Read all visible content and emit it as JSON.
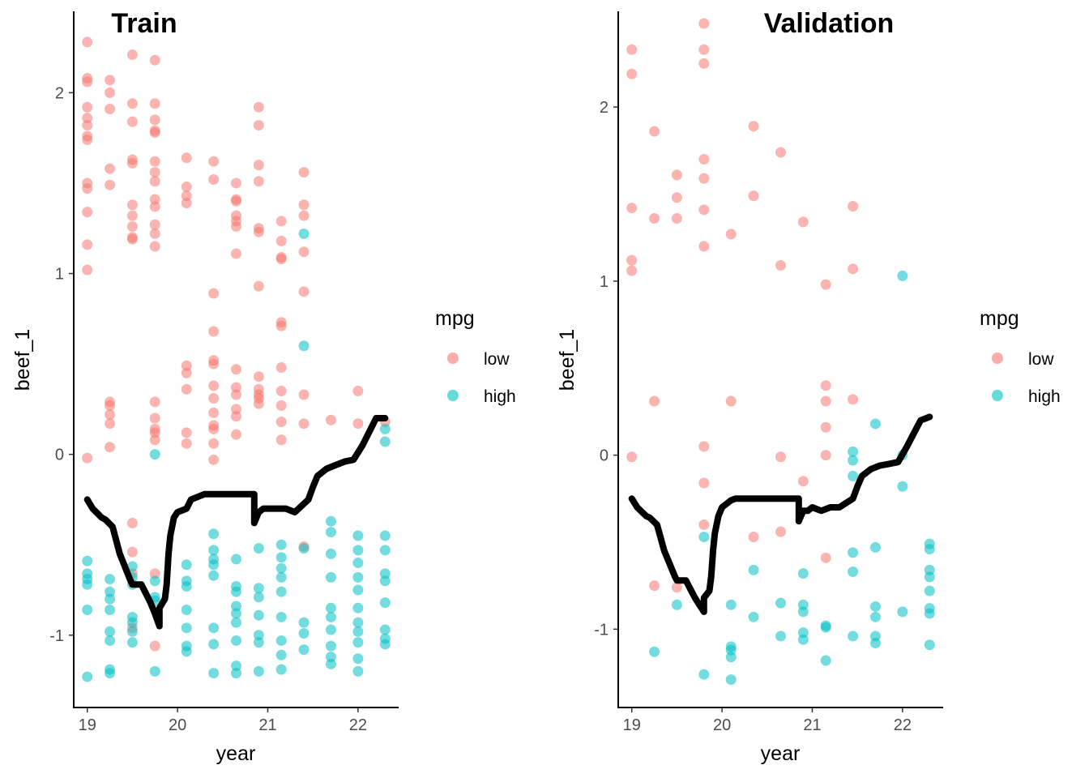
{
  "colors": {
    "low": "#F8766D",
    "high": "#00BFC4",
    "line": "#000000",
    "axis": "#000000"
  },
  "chart_data": [
    {
      "type": "scatter",
      "title": "Train",
      "xlabel": "year",
      "ylabel": "beef_1",
      "xlim": [
        18.85,
        22.45
      ],
      "ylim": [
        -1.4,
        2.45
      ],
      "xticks": [
        19,
        20,
        21,
        22
      ],
      "yticks": [
        -1,
        0,
        1,
        2
      ],
      "grid": false,
      "legend": {
        "title": "mpg",
        "position": "right",
        "entries": [
          "low",
          "high"
        ]
      },
      "series": [
        {
          "name": "low",
          "x": [
            19,
            19,
            19,
            19,
            19,
            19,
            19,
            19,
            19,
            19,
            19,
            19,
            19,
            19,
            19.25,
            19.25,
            19.25,
            19.25,
            19.25,
            19.25,
            19.25,
            19.25,
            19.25,
            19.25,
            19.5,
            19.5,
            19.5,
            19.5,
            19.5,
            19.5,
            19.5,
            19.5,
            19.5,
            19.5,
            19.5,
            19.5,
            19.5,
            19.5,
            19.75,
            19.75,
            19.75,
            19.75,
            19.75,
            19.75,
            19.75,
            19.75,
            19.75,
            19.75,
            19.75,
            19.75,
            19.75,
            19.75,
            19.75,
            19.75,
            19.75,
            19.75,
            19.75,
            19.75,
            20.1,
            20.1,
            20.1,
            20.1,
            20.1,
            20.1,
            20.1,
            20.1,
            20.1,
            20.4,
            20.4,
            20.4,
            20.4,
            20.4,
            20.4,
            20.4,
            20.4,
            20.4,
            20.4,
            20.4,
            20.4,
            20.4,
            20.65,
            20.65,
            20.65,
            20.65,
            20.65,
            20.65,
            20.65,
            20.65,
            20.65,
            20.65,
            20.65,
            20.65,
            20.65,
            20.9,
            20.9,
            20.9,
            20.9,
            20.9,
            20.9,
            20.9,
            20.9,
            20.9,
            20.9,
            20.9,
            20.9,
            21.15,
            21.15,
            21.15,
            21.15,
            21.15,
            21.15,
            21.15,
            21.15,
            21.15,
            21.15,
            21.15,
            21.4,
            21.4,
            21.4,
            21.4,
            21.4,
            21.4,
            21.4,
            21.4,
            21.7,
            22,
            22,
            22.3
          ],
          "y": [
            2.28,
            2.08,
            2.06,
            1.92,
            1.86,
            1.82,
            1.76,
            1.74,
            1.5,
            1.47,
            1.34,
            1.16,
            1.02,
            -0.02,
            2.07,
            2.0,
            1.91,
            1.58,
            1.49,
            0.29,
            0.27,
            0.22,
            0.17,
            0.04,
            2.21,
            1.94,
            1.84,
            1.63,
            1.61,
            1.38,
            1.32,
            1.26,
            1.2,
            1.19,
            -0.38,
            -0.54,
            -0.66,
            -0.96,
            2.18,
            1.94,
            1.85,
            1.79,
            1.78,
            1.62,
            1.56,
            1.51,
            1.41,
            1.37,
            1.27,
            1.22,
            1.15,
            0.29,
            0.2,
            0.14,
            0.12,
            0.08,
            -0.66,
            -1.06,
            1.64,
            1.48,
            1.43,
            1.39,
            0.49,
            0.45,
            0.36,
            0.12,
            0.06,
            1.62,
            1.52,
            0.89,
            0.68,
            0.52,
            0.5,
            0.38,
            0.31,
            0.23,
            0.16,
            0.14,
            0.06,
            -0.03,
            1.5,
            1.41,
            1.4,
            1.32,
            1.29,
            1.26,
            1.11,
            0.47,
            0.37,
            0.33,
            0.25,
            0.21,
            0.11,
            1.92,
            1.82,
            1.6,
            1.51,
            1.25,
            1.23,
            0.93,
            0.43,
            0.36,
            0.33,
            0.31,
            0.28,
            1.29,
            1.18,
            1.09,
            1.08,
            0.73,
            0.71,
            0.48,
            0.35,
            0.27,
            0.18,
            0.08,
            1.56,
            1.38,
            1.32,
            1.12,
            0.9,
            0.33,
            0.17,
            -0.51,
            0.19,
            0.35,
            0.17,
            0.18
          ]
        },
        {
          "name": "high",
          "x": [
            19,
            19,
            19,
            19,
            19,
            19,
            19.25,
            19.25,
            19.25,
            19.25,
            19.25,
            19.25,
            19.25,
            19.25,
            19.5,
            19.5,
            19.5,
            19.5,
            19.5,
            19.5,
            19.5,
            19.75,
            19.75,
            19.75,
            19.75,
            19.75,
            20.1,
            20.1,
            20.1,
            20.1,
            20.1,
            20.1,
            20.1,
            20.4,
            20.4,
            20.4,
            20.4,
            20.4,
            20.4,
            20.4,
            20.4,
            20.65,
            20.65,
            20.65,
            20.65,
            20.65,
            20.65,
            20.65,
            20.65,
            20.65,
            20.9,
            20.9,
            20.9,
            20.9,
            20.9,
            20.9,
            20.9,
            21.15,
            21.15,
            21.15,
            21.15,
            21.15,
            21.15,
            21.15,
            21.15,
            21.15,
            21.4,
            21.4,
            21.4,
            21.4,
            21.4,
            21.4,
            21.7,
            21.7,
            21.7,
            21.7,
            21.7,
            21.7,
            21.7,
            21.7,
            21.7,
            21.7,
            22,
            22,
            22,
            22,
            22,
            22,
            22,
            22,
            22,
            22,
            22,
            22.3,
            22.3,
            22.3,
            22.3,
            22.3,
            22.3,
            22.3,
            22.3,
            22.3,
            22.3
          ],
          "y": [
            -0.59,
            -0.66,
            -0.69,
            -0.72,
            -0.86,
            -1.23,
            -0.69,
            -0.76,
            -0.8,
            -0.98,
            -1.03,
            -1.19,
            -1.21,
            -0.86,
            -0.62,
            -0.72,
            -0.9,
            -0.93,
            -0.98,
            -1.04,
            -0.68,
            -0.7,
            -0.79,
            -0.81,
            -1.2,
            0.0,
            -0.61,
            -0.7,
            -0.73,
            -0.86,
            -0.96,
            -1.06,
            -1.09,
            -0.44,
            -0.53,
            -0.58,
            -0.61,
            -0.96,
            -1.05,
            -1.21,
            -0.67,
            -0.58,
            -0.73,
            -0.76,
            -0.84,
            -0.88,
            -0.93,
            -1.03,
            -1.17,
            -1.21,
            -0.52,
            -0.74,
            -0.79,
            -0.89,
            -1.0,
            -1.04,
            -1.2,
            -0.5,
            -0.57,
            -0.63,
            -0.68,
            -0.76,
            -0.9,
            -1.03,
            -1.11,
            -1.19,
            1.22,
            0.6,
            -0.52,
            -0.93,
            -0.99,
            -1.08,
            -0.37,
            -0.43,
            -0.55,
            -0.68,
            -0.85,
            -0.9,
            -0.97,
            -1.06,
            -1.12,
            -1.16,
            -0.45,
            -0.53,
            -0.6,
            -0.68,
            -0.75,
            -0.85,
            -0.93,
            -0.98,
            -1.04,
            -1.13,
            -1.2,
            0.14,
            0.07,
            -0.45,
            -0.53,
            -0.66,
            -0.7,
            -0.82,
            -0.97,
            -1.02,
            -1.05
          ]
        },
        {
          "name": "",
          "type": "line",
          "x": [
            19,
            19.06,
            19.1,
            19.16,
            19.2,
            19.28,
            19.36,
            19.4,
            19.44,
            19.48,
            19.5,
            19.6,
            19.65,
            19.7,
            19.75,
            19.8,
            19.8,
            19.86,
            19.88,
            19.9,
            19.92,
            19.94,
            19.96,
            20,
            20.1,
            20.15,
            20.3,
            20.5,
            20.85,
            20.85,
            20.9,
            20.95,
            21,
            21.1,
            21.2,
            21.3,
            21.45,
            21.5,
            21.55,
            21.65,
            21.75,
            21.85,
            21.95,
            22.05,
            22.15,
            22.2,
            22.3
          ],
          "y": [
            -0.25,
            -0.3,
            -0.32,
            -0.35,
            -0.36,
            -0.4,
            -0.55,
            -0.6,
            -0.65,
            -0.7,
            -0.72,
            -0.72,
            -0.77,
            -0.82,
            -0.88,
            -0.95,
            -0.85,
            -0.8,
            -0.72,
            -0.55,
            -0.45,
            -0.4,
            -0.35,
            -0.32,
            -0.3,
            -0.25,
            -0.22,
            -0.22,
            -0.22,
            -0.38,
            -0.32,
            -0.3,
            -0.3,
            -0.3,
            -0.3,
            -0.32,
            -0.25,
            -0.18,
            -0.12,
            -0.08,
            -0.06,
            -0.04,
            -0.03,
            0.05,
            0.15,
            0.2,
            0.2
          ]
        }
      ]
    },
    {
      "type": "scatter",
      "title": "Validation",
      "xlabel": "year",
      "ylabel": "beef_1",
      "xlim": [
        18.85,
        22.45
      ],
      "ylim": [
        -1.45,
        2.55
      ],
      "xticks": [
        19,
        20,
        21,
        22
      ],
      "yticks": [
        -1,
        0,
        1,
        2
      ],
      "grid": false,
      "legend": {
        "title": "mpg",
        "position": "right",
        "entries": [
          "low",
          "high"
        ]
      },
      "series": [
        {
          "name": "low",
          "x": [
            19,
            19,
            19,
            19,
            19,
            19,
            19.25,
            19.25,
            19.25,
            19.25,
            19.5,
            19.5,
            19.5,
            19.5,
            19.8,
            19.8,
            19.8,
            19.8,
            19.8,
            19.8,
            19.8,
            19.8,
            19.8,
            19.8,
            20.1,
            20.1,
            20.35,
            20.35,
            20.35,
            20.65,
            20.65,
            20.65,
            20.65,
            20.9,
            20.9,
            21.15,
            21.15,
            21.15,
            21.15,
            21.15,
            21.15,
            21.45,
            21.45,
            21.45
          ],
          "y": [
            2.33,
            2.19,
            1.42,
            1.12,
            1.06,
            -0.01,
            1.86,
            1.36,
            0.31,
            -0.75,
            1.61,
            1.48,
            1.36,
            -0.76,
            2.48,
            2.33,
            2.25,
            1.7,
            1.59,
            1.41,
            1.2,
            0.05,
            -0.16,
            -0.4,
            1.27,
            0.31,
            1.89,
            1.49,
            -0.47,
            1.74,
            1.09,
            -0.01,
            -0.44,
            1.34,
            -0.15,
            0.98,
            0.4,
            0.31,
            0.16,
            0.0,
            -0.59,
            1.43,
            1.07,
            0.32
          ]
        },
        {
          "name": "high",
          "x": [
            19.25,
            19.5,
            19.8,
            19.8,
            20.1,
            20.1,
            20.1,
            20.1,
            20.1,
            20.35,
            20.35,
            20.65,
            20.65,
            20.9,
            20.9,
            20.9,
            20.9,
            20.9,
            21.15,
            21.15,
            21.15,
            21.45,
            21.45,
            21.45,
            21.45,
            21.45,
            21.45,
            21.7,
            21.7,
            21.7,
            21.7,
            21.7,
            21.7,
            22,
            22,
            22,
            22,
            22.3,
            22.3,
            22.3,
            22.3,
            22.3,
            22.3,
            22.3,
            22.3
          ],
          "y": [
            -1.13,
            -0.86,
            -1.26,
            -0.47,
            -0.86,
            -1.1,
            -1.12,
            -1.16,
            -1.29,
            -0.66,
            -0.93,
            -0.85,
            -1.04,
            -0.68,
            -0.86,
            -0.9,
            -1.02,
            -1.06,
            -0.98,
            -0.99,
            -1.18,
            0.02,
            -0.03,
            -0.12,
            -0.56,
            -0.67,
            -1.04,
            0.18,
            -0.53,
            -0.87,
            -0.93,
            -1.04,
            -1.08,
            1.03,
            0.0,
            -0.18,
            -0.9,
            -0.51,
            -0.54,
            -0.66,
            -0.7,
            -0.78,
            -0.88,
            -0.91,
            -1.09
          ]
        },
        {
          "name": "",
          "type": "line",
          "x": [
            19,
            19.06,
            19.1,
            19.16,
            19.2,
            19.28,
            19.36,
            19.4,
            19.44,
            19.48,
            19.5,
            19.6,
            19.65,
            19.7,
            19.75,
            19.8,
            19.8,
            19.86,
            19.88,
            19.9,
            19.92,
            19.94,
            19.96,
            20,
            20.1,
            20.15,
            20.3,
            20.5,
            20.85,
            20.85,
            20.9,
            20.95,
            21,
            21.1,
            21.2,
            21.3,
            21.45,
            21.5,
            21.55,
            21.65,
            21.75,
            21.85,
            21.95,
            22.05,
            22.15,
            22.2,
            22.3
          ],
          "y": [
            -0.25,
            -0.3,
            -0.32,
            -0.35,
            -0.36,
            -0.4,
            -0.55,
            -0.6,
            -0.65,
            -0.7,
            -0.72,
            -0.72,
            -0.77,
            -0.82,
            -0.86,
            -0.9,
            -0.82,
            -0.78,
            -0.7,
            -0.55,
            -0.45,
            -0.4,
            -0.35,
            -0.3,
            -0.26,
            -0.25,
            -0.25,
            -0.25,
            -0.25,
            -0.38,
            -0.32,
            -0.32,
            -0.3,
            -0.32,
            -0.3,
            -0.3,
            -0.25,
            -0.18,
            -0.12,
            -0.08,
            -0.06,
            -0.05,
            -0.04,
            0.05,
            0.15,
            0.2,
            0.22
          ]
        }
      ]
    }
  ]
}
